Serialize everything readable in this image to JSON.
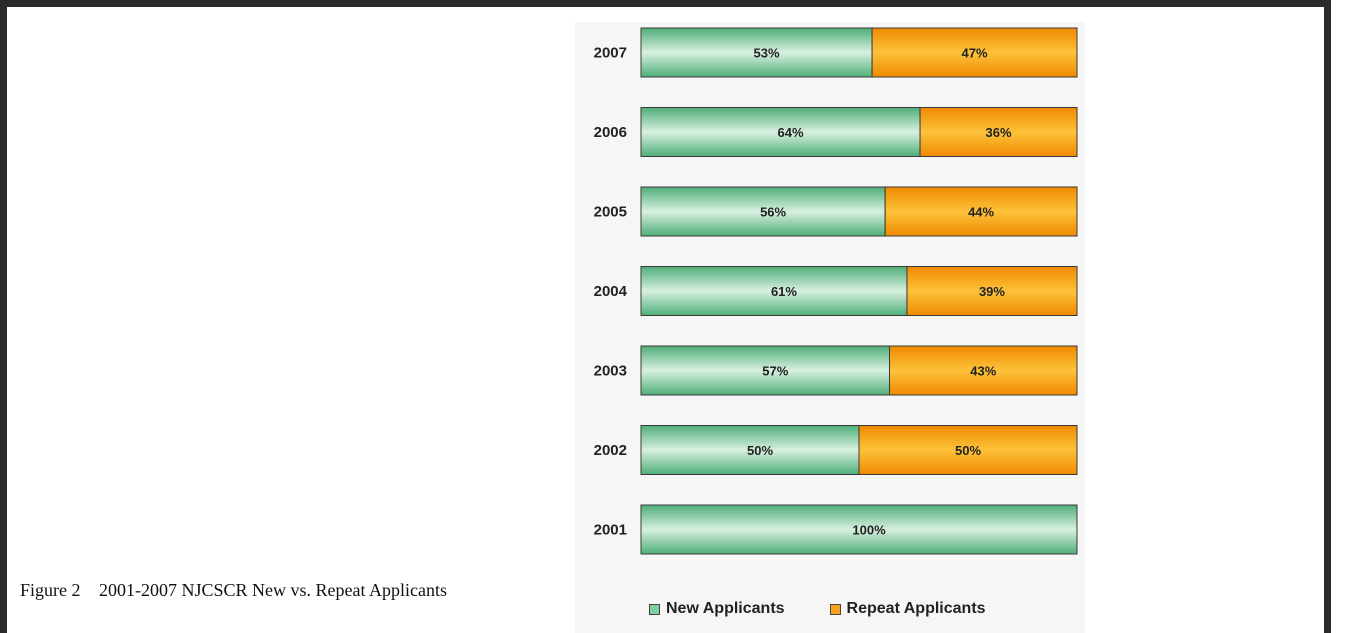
{
  "caption": {
    "figure_number": "Figure 2",
    "title": "2001-2007 NJCSCR New vs. Repeat Applicants"
  },
  "colors": {
    "new_applicants": "#7fcf9f",
    "repeat_applicants": "#f7a21a",
    "border": "#2a2a2a"
  },
  "chart_data": {
    "type": "bar",
    "orientation": "horizontal",
    "stacked": true,
    "percent": true,
    "categories": [
      "2007",
      "2006",
      "2005",
      "2004",
      "2003",
      "2002",
      "2001"
    ],
    "series": [
      {
        "name": "New Applicants",
        "values": [
          53,
          64,
          56,
          61,
          57,
          50,
          100
        ],
        "labels": [
          "53%",
          "64%",
          "56%",
          "61%",
          "57%",
          "50%",
          "100%"
        ],
        "color": "#7fcf9f"
      },
      {
        "name": "Repeat Applicants",
        "values": [
          47,
          36,
          44,
          39,
          43,
          50,
          0
        ],
        "labels": [
          "47%",
          "36%",
          "44%",
          "39%",
          "43%",
          "50%",
          ""
        ],
        "color": "#f7a21a"
      }
    ],
    "xlim": [
      0,
      100
    ],
    "legend_position": "bottom",
    "grid": false
  }
}
